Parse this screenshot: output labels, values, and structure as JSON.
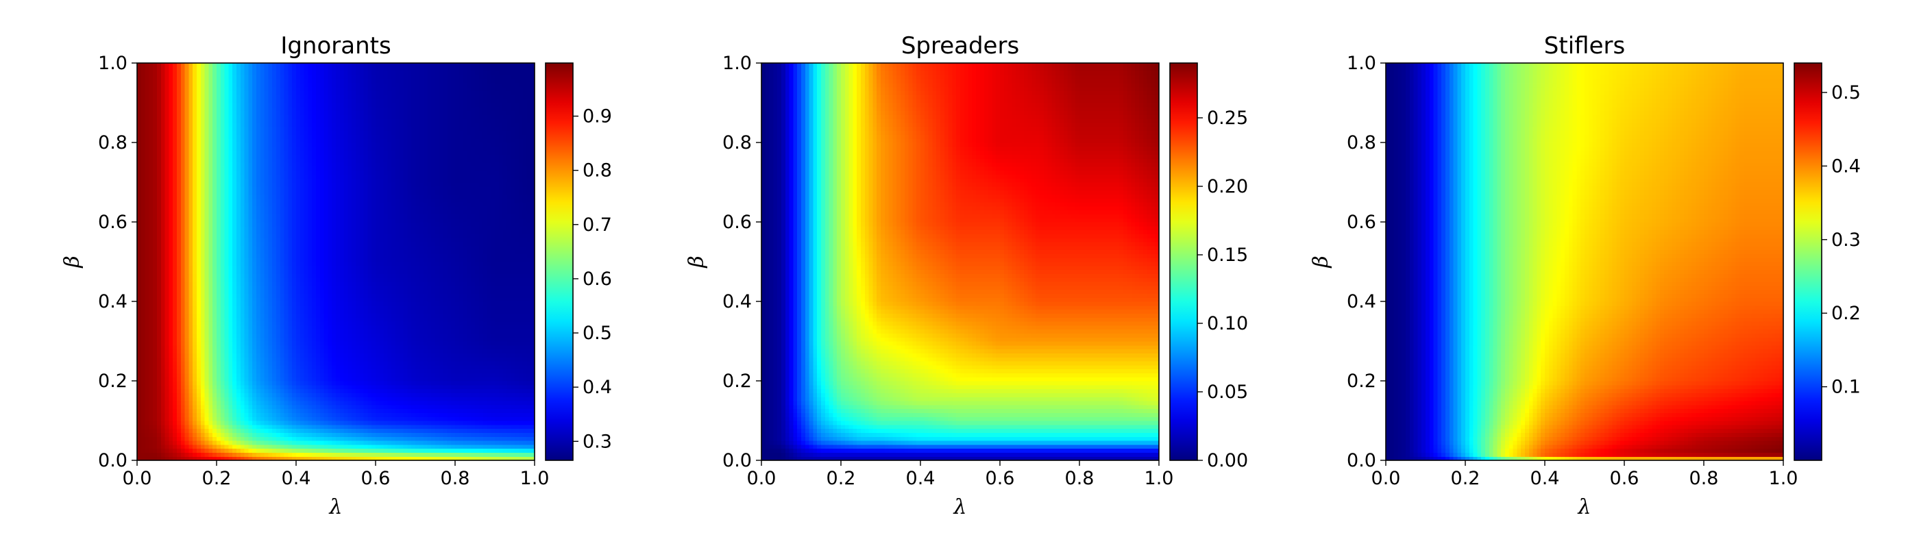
{
  "chart_data": [
    {
      "type": "heatmap",
      "title": "Ignorants",
      "xlabel": "λ",
      "ylabel": "β",
      "xlim": [
        0.0,
        1.0
      ],
      "ylim": [
        0.0,
        1.0
      ],
      "xticks": [
        "0.0",
        "0.2",
        "0.4",
        "0.6",
        "0.8",
        "1.0"
      ],
      "yticks": [
        "0.0",
        "0.2",
        "0.4",
        "0.6",
        "0.8",
        "1.0"
      ],
      "colormap": "jet",
      "colorbar": {
        "min": 0.265,
        "max": 0.998,
        "ticks": [
          0.3,
          0.4,
          0.5,
          0.6,
          0.7,
          0.8,
          0.9
        ],
        "tick_labels": [
          "0.3",
          "0.4",
          "0.5",
          "0.6",
          "0.7",
          "0.8",
          "0.9"
        ]
      },
      "grid": {
        "lambda": [
          0.0,
          0.05,
          0.1,
          0.15,
          0.2,
          0.25,
          0.3,
          0.4,
          0.5,
          0.6,
          0.7,
          0.8,
          0.9,
          1.0
        ],
        "beta": [
          0.0,
          0.01,
          0.03,
          0.05,
          0.1,
          0.2,
          0.3,
          0.5,
          0.7,
          1.0
        ]
      },
      "values": [
        [
          0.99,
          0.99,
          0.97,
          0.95,
          0.93,
          0.9,
          0.85,
          0.8,
          0.78,
          0.76,
          0.75,
          0.73,
          0.71,
          0.7
        ],
        [
          0.99,
          0.99,
          0.96,
          0.92,
          0.88,
          0.84,
          0.8,
          0.76,
          0.73,
          0.71,
          0.69,
          0.68,
          0.66,
          0.64
        ],
        [
          0.99,
          0.98,
          0.94,
          0.87,
          0.8,
          0.74,
          0.68,
          0.62,
          0.58,
          0.55,
          0.52,
          0.5,
          0.49,
          0.48
        ],
        [
          0.99,
          0.98,
          0.92,
          0.83,
          0.74,
          0.66,
          0.6,
          0.54,
          0.51,
          0.48,
          0.46,
          0.44,
          0.43,
          0.42
        ],
        [
          0.99,
          0.97,
          0.9,
          0.78,
          0.66,
          0.57,
          0.51,
          0.45,
          0.41,
          0.38,
          0.37,
          0.36,
          0.35,
          0.35
        ],
        [
          0.99,
          0.97,
          0.89,
          0.75,
          0.62,
          0.53,
          0.47,
          0.4,
          0.36,
          0.34,
          0.32,
          0.31,
          0.31,
          0.3
        ],
        [
          0.99,
          0.97,
          0.88,
          0.74,
          0.61,
          0.52,
          0.46,
          0.39,
          0.35,
          0.33,
          0.31,
          0.3,
          0.29,
          0.29
        ],
        [
          0.99,
          0.97,
          0.88,
          0.73,
          0.6,
          0.51,
          0.45,
          0.38,
          0.34,
          0.31,
          0.3,
          0.29,
          0.28,
          0.28
        ],
        [
          0.99,
          0.97,
          0.88,
          0.73,
          0.6,
          0.51,
          0.44,
          0.38,
          0.34,
          0.31,
          0.29,
          0.28,
          0.28,
          0.27
        ],
        [
          0.99,
          0.97,
          0.88,
          0.73,
          0.6,
          0.5,
          0.44,
          0.37,
          0.33,
          0.3,
          0.29,
          0.28,
          0.27,
          0.27
        ]
      ]
    },
    {
      "type": "heatmap",
      "title": "Spreaders",
      "xlabel": "λ",
      "ylabel": "β",
      "xlim": [
        0.0,
        1.0
      ],
      "ylim": [
        0.0,
        1.0
      ],
      "xticks": [
        "0.0",
        "0.2",
        "0.4",
        "0.6",
        "0.8",
        "1.0"
      ],
      "yticks": [
        "0.0",
        "0.2",
        "0.4",
        "0.6",
        "0.8",
        "1.0"
      ],
      "colormap": "jet",
      "colorbar": {
        "min": 0.0,
        "max": 0.29,
        "ticks": [
          0.0,
          0.05,
          0.1,
          0.15,
          0.2,
          0.25
        ],
        "tick_labels": [
          "0.00",
          "0.05",
          "0.10",
          "0.15",
          "0.20",
          "0.25"
        ]
      },
      "grid": {
        "lambda": [
          0.0,
          0.05,
          0.1,
          0.15,
          0.2,
          0.25,
          0.3,
          0.4,
          0.5,
          0.6,
          0.7,
          0.8,
          0.9,
          1.0
        ],
        "beta": [
          0.0,
          0.02,
          0.05,
          0.1,
          0.15,
          0.2,
          0.3,
          0.4,
          0.6,
          0.8,
          1.0
        ]
      },
      "values": [
        [
          0.0,
          0.0,
          0.01,
          0.01,
          0.01,
          0.01,
          0.01,
          0.01,
          0.01,
          0.01,
          0.01,
          0.01,
          0.01,
          0.01
        ],
        [
          0.0,
          0.0,
          0.02,
          0.03,
          0.03,
          0.03,
          0.03,
          0.03,
          0.03,
          0.03,
          0.03,
          0.03,
          0.03,
          0.03
        ],
        [
          0.0,
          0.01,
          0.04,
          0.07,
          0.08,
          0.09,
          0.09,
          0.1,
          0.1,
          0.1,
          0.1,
          0.1,
          0.1,
          0.1
        ],
        [
          0.0,
          0.01,
          0.05,
          0.09,
          0.11,
          0.12,
          0.13,
          0.13,
          0.14,
          0.14,
          0.14,
          0.14,
          0.14,
          0.14
        ],
        [
          0.0,
          0.01,
          0.06,
          0.1,
          0.13,
          0.14,
          0.15,
          0.16,
          0.16,
          0.16,
          0.16,
          0.16,
          0.16,
          0.17
        ],
        [
          0.0,
          0.01,
          0.06,
          0.11,
          0.14,
          0.15,
          0.16,
          0.17,
          0.18,
          0.18,
          0.18,
          0.18,
          0.18,
          0.18
        ],
        [
          0.0,
          0.01,
          0.06,
          0.12,
          0.15,
          0.17,
          0.18,
          0.19,
          0.2,
          0.21,
          0.21,
          0.21,
          0.21,
          0.21
        ],
        [
          0.0,
          0.01,
          0.06,
          0.12,
          0.16,
          0.18,
          0.2,
          0.21,
          0.22,
          0.22,
          0.23,
          0.23,
          0.23,
          0.23
        ],
        [
          0.0,
          0.01,
          0.06,
          0.12,
          0.16,
          0.19,
          0.21,
          0.23,
          0.24,
          0.24,
          0.25,
          0.25,
          0.25,
          0.26
        ],
        [
          0.0,
          0.01,
          0.06,
          0.12,
          0.16,
          0.19,
          0.21,
          0.23,
          0.25,
          0.26,
          0.26,
          0.27,
          0.27,
          0.28
        ],
        [
          0.0,
          0.01,
          0.06,
          0.12,
          0.16,
          0.19,
          0.22,
          0.24,
          0.25,
          0.26,
          0.27,
          0.28,
          0.28,
          0.29
        ]
      ]
    },
    {
      "type": "heatmap",
      "title": "Stiflers",
      "xlabel": "λ",
      "ylabel": "β",
      "xlim": [
        0.0,
        1.0
      ],
      "ylim": [
        0.0,
        1.0
      ],
      "xticks": [
        "0.0",
        "0.2",
        "0.4",
        "0.6",
        "0.8",
        "1.0"
      ],
      "yticks": [
        "0.0",
        "0.2",
        "0.4",
        "0.6",
        "0.8",
        "1.0"
      ],
      "colormap": "jet",
      "colorbar": {
        "min": 0.0,
        "max": 0.54,
        "ticks": [
          0.1,
          0.2,
          0.3,
          0.4,
          0.5
        ],
        "tick_labels": [
          "0.1",
          "0.2",
          "0.3",
          "0.4",
          "0.5"
        ]
      },
      "grid": {
        "lambda": [
          0.0,
          0.05,
          0.1,
          0.15,
          0.2,
          0.3,
          0.4,
          0.5,
          0.6,
          0.7,
          0.8,
          0.9,
          1.0
        ],
        "beta": [
          0.0,
          0.01,
          0.02,
          0.05,
          0.1,
          0.2,
          0.4,
          0.6,
          0.8,
          1.0
        ]
      },
      "values": [
        [
          0.0,
          0.01,
          0.02,
          0.05,
          0.1,
          0.2,
          0.25,
          0.28,
          0.28,
          0.27,
          0.27,
          0.26,
          0.26
        ],
        [
          0.0,
          0.01,
          0.04,
          0.09,
          0.16,
          0.33,
          0.42,
          0.46,
          0.48,
          0.49,
          0.5,
          0.51,
          0.51
        ],
        [
          0.0,
          0.01,
          0.05,
          0.1,
          0.17,
          0.33,
          0.42,
          0.46,
          0.49,
          0.51,
          0.52,
          0.53,
          0.54
        ],
        [
          0.0,
          0.01,
          0.05,
          0.11,
          0.18,
          0.32,
          0.4,
          0.44,
          0.47,
          0.49,
          0.51,
          0.52,
          0.53
        ],
        [
          0.0,
          0.01,
          0.05,
          0.11,
          0.18,
          0.3,
          0.38,
          0.42,
          0.45,
          0.47,
          0.48,
          0.49,
          0.5
        ],
        [
          0.0,
          0.01,
          0.05,
          0.11,
          0.18,
          0.28,
          0.35,
          0.39,
          0.41,
          0.43,
          0.44,
          0.45,
          0.46
        ],
        [
          0.0,
          0.01,
          0.05,
          0.11,
          0.18,
          0.27,
          0.33,
          0.36,
          0.38,
          0.4,
          0.41,
          0.42,
          0.42
        ],
        [
          0.0,
          0.01,
          0.05,
          0.11,
          0.18,
          0.27,
          0.32,
          0.35,
          0.37,
          0.38,
          0.39,
          0.4,
          0.4
        ],
        [
          0.0,
          0.01,
          0.05,
          0.11,
          0.18,
          0.27,
          0.32,
          0.34,
          0.36,
          0.37,
          0.38,
          0.39,
          0.39
        ],
        [
          0.0,
          0.01,
          0.05,
          0.11,
          0.18,
          0.27,
          0.31,
          0.34,
          0.35,
          0.36,
          0.37,
          0.38,
          0.38
        ]
      ]
    }
  ]
}
